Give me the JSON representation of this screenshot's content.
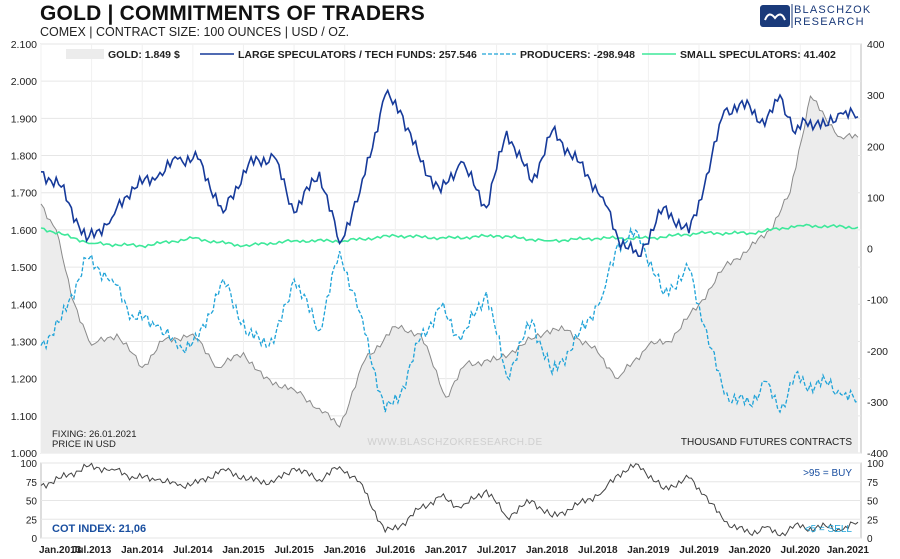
{
  "header": {
    "title": "GOLD | COMMITMENTS OF TRADERS",
    "subtitle": "COMEX | CONTRACT SIZE: 100 OUNCES | USD / OZ.",
    "logo_line1": "BLASCHZOK",
    "logo_line2": "RESEARCH"
  },
  "colors": {
    "gold": "#8a8a8a",
    "gold_fill": "#ececec",
    "large_spec": "#163a9a",
    "producers": "#1fa3d8",
    "small_spec": "#3ee89a",
    "cot": "#444444",
    "label_blue": "#1a4fa0"
  },
  "chart_data": [
    {
      "type": "line",
      "title": "GOLD | COMMITMENTS OF TRADERS",
      "x": [
        "Jan.2013",
        "Jul.2013",
        "Jan.2014",
        "Jul.2014",
        "Jan.2015",
        "Jul.2015",
        "Jan.2016",
        "Jul.2016",
        "Jan.2017",
        "Jul.2017",
        "Jan.2018",
        "Jul.2018",
        "Jan.2019",
        "Jul.2019",
        "Jan.2020",
        "Jul.2020",
        "Jan.2021"
      ],
      "xlim": [
        2013.0,
        2021.1
      ],
      "ylim_left": [
        1000,
        2100
      ],
      "ylim_right": [
        -400,
        400
      ],
      "yticks_left": [
        "2.100",
        "2.000",
        "1.900",
        "1.800",
        "1.700",
        "1.600",
        "1.500",
        "1.400",
        "1.300",
        "1.200",
        "1.100",
        "1.000"
      ],
      "yticks_right": [
        "400",
        "300",
        "200",
        "100",
        "0",
        "-100",
        "-200",
        "-300",
        "-400"
      ],
      "series": [
        {
          "name": "GOLD: 1.849 $",
          "axis": "left",
          "style": "area",
          "x": [
            2013.0,
            2013.15,
            2013.3,
            2013.5,
            2013.75,
            2014.0,
            2014.2,
            2014.5,
            2014.75,
            2015.0,
            2015.2,
            2015.5,
            2015.75,
            2015.95,
            2016.2,
            2016.5,
            2016.75,
            2017.0,
            2017.2,
            2017.5,
            2017.75,
            2018.0,
            2018.2,
            2018.5,
            2018.7,
            2019.0,
            2019.2,
            2019.5,
            2019.75,
            2020.0,
            2020.2,
            2020.4,
            2020.6,
            2020.75,
            2020.9,
            2021.07
          ],
          "values": [
            1670,
            1600,
            1420,
            1290,
            1320,
            1230,
            1300,
            1320,
            1230,
            1270,
            1200,
            1170,
            1120,
            1070,
            1250,
            1340,
            1320,
            1150,
            1240,
            1250,
            1290,
            1330,
            1330,
            1270,
            1200,
            1290,
            1300,
            1400,
            1500,
            1550,
            1600,
            1700,
            1960,
            1900,
            1850,
            1849
          ]
        },
        {
          "name": "LARGE SPECULATORS / TECH FUNDS: 257.546",
          "axis": "right",
          "style": "line",
          "x": [
            2013.0,
            2013.2,
            2013.45,
            2013.7,
            2013.9,
            2014.15,
            2014.35,
            2014.55,
            2014.8,
            2015.05,
            2015.3,
            2015.5,
            2015.75,
            2015.95,
            2016.15,
            2016.4,
            2016.55,
            2016.75,
            2016.95,
            2017.15,
            2017.4,
            2017.6,
            2017.85,
            2018.05,
            2018.3,
            2018.55,
            2018.7,
            2018.9,
            2019.15,
            2019.4,
            2019.55,
            2019.75,
            2020.0,
            2020.15,
            2020.3,
            2020.45,
            2020.55,
            2020.75,
            2020.9,
            2021.07
          ],
          "values": [
            150,
            120,
            15,
            60,
            120,
            140,
            175,
            175,
            70,
            165,
            180,
            70,
            150,
            10,
            110,
            300,
            270,
            170,
            110,
            170,
            80,
            230,
            130,
            230,
            170,
            100,
            20,
            -15,
            80,
            30,
            120,
            270,
            280,
            240,
            300,
            225,
            250,
            240,
            265,
            257.546
          ]
        },
        {
          "name": "PRODUCERS: -298.948",
          "axis": "right",
          "style": "dashed",
          "x": [
            2013.0,
            2013.2,
            2013.45,
            2013.7,
            2013.9,
            2014.15,
            2014.35,
            2014.55,
            2014.8,
            2015.05,
            2015.3,
            2015.5,
            2015.75,
            2015.95,
            2016.15,
            2016.4,
            2016.55,
            2016.75,
            2016.95,
            2017.15,
            2017.4,
            2017.6,
            2017.85,
            2018.05,
            2018.3,
            2018.55,
            2018.7,
            2018.9,
            2019.15,
            2019.4,
            2019.55,
            2019.75,
            2020.0,
            2020.15,
            2020.3,
            2020.45,
            2020.55,
            2020.75,
            2020.9,
            2021.07
          ],
          "values": [
            -190,
            -140,
            -20,
            -60,
            -130,
            -150,
            -195,
            -180,
            -60,
            -170,
            -185,
            -60,
            -160,
            -5,
            -125,
            -320,
            -285,
            -175,
            -115,
            -180,
            -85,
            -250,
            -140,
            -245,
            -175,
            -90,
            10,
            30,
            -90,
            -40,
            -150,
            -285,
            -305,
            -260,
            -320,
            -245,
            -270,
            -260,
            -285,
            -298.948
          ]
        },
        {
          "name": "SMALL SPECULATORS: 41.402",
          "axis": "right",
          "style": "line",
          "x": [
            2013.0,
            2013.5,
            2014.0,
            2014.5,
            2015.0,
            2015.5,
            2016.0,
            2016.5,
            2017.0,
            2017.5,
            2018.0,
            2018.5,
            2019.0,
            2019.5,
            2020.0,
            2020.5,
            2021.07
          ],
          "values": [
            40,
            10,
            5,
            20,
            5,
            15,
            15,
            25,
            20,
            25,
            15,
            20,
            20,
            30,
            30,
            45,
            41.402
          ]
        }
      ],
      "annotations": [
        "FIXING: 26.01.2021",
        "PRICE IN USD",
        "THOUSAND  FUTURES CONTRACTS",
        "WWW.BLASCHZOKRESEARCH.DE"
      ]
    },
    {
      "type": "line",
      "title": "COT INDEX: 21,06",
      "ylim": [
        0,
        100
      ],
      "yticks": [
        "100",
        "75",
        "50",
        "25",
        "0"
      ],
      "thresholds": {
        "buy": 95,
        "sell": 5
      },
      "series": [
        {
          "name": "COT INDEX: 21,06",
          "x": [
            2013.0,
            2013.2,
            2013.45,
            2013.7,
            2013.9,
            2014.15,
            2014.35,
            2014.55,
            2014.8,
            2015.05,
            2015.3,
            2015.5,
            2015.75,
            2015.95,
            2016.15,
            2016.4,
            2016.55,
            2016.75,
            2016.95,
            2017.15,
            2017.4,
            2017.6,
            2017.85,
            2018.05,
            2018.3,
            2018.55,
            2018.7,
            2018.9,
            2019.15,
            2019.4,
            2019.55,
            2019.75,
            2020.0,
            2020.15,
            2020.3,
            2020.45,
            2020.55,
            2020.75,
            2020.9,
            2021.07
          ],
          "values": [
            70,
            80,
            95,
            92,
            82,
            78,
            70,
            73,
            92,
            78,
            74,
            93,
            78,
            95,
            75,
            8,
            16,
            40,
            55,
            40,
            64,
            28,
            50,
            28,
            44,
            62,
            85,
            98,
            65,
            80,
            58,
            22,
            6,
            14,
            3,
            18,
            12,
            16,
            10,
            21.06
          ]
        }
      ],
      "annotations": [
        ">95 = BUY",
        "<5 = SELL"
      ]
    }
  ],
  "texts": {
    "legend_gold": "GOLD: 1.849 $",
    "legend_large": "LARGE SPECULATORS / TECH FUNDS: 257.546",
    "legend_producers": "PRODUCERS: -298.948",
    "legend_small": "SMALL SPECULATORS: 41.402",
    "fixing": "FIXING: 26.01.2021",
    "price_in": "PRICE IN USD",
    "thousand": "THOUSAND  FUTURES CONTRACTS",
    "watermark": "WWW.BLASCHZOKRESEARCH.DE",
    "cot_label": "COT INDEX: 21,06",
    "buy_label": ">95 = BUY",
    "sell_label": "<5 = SELL"
  }
}
